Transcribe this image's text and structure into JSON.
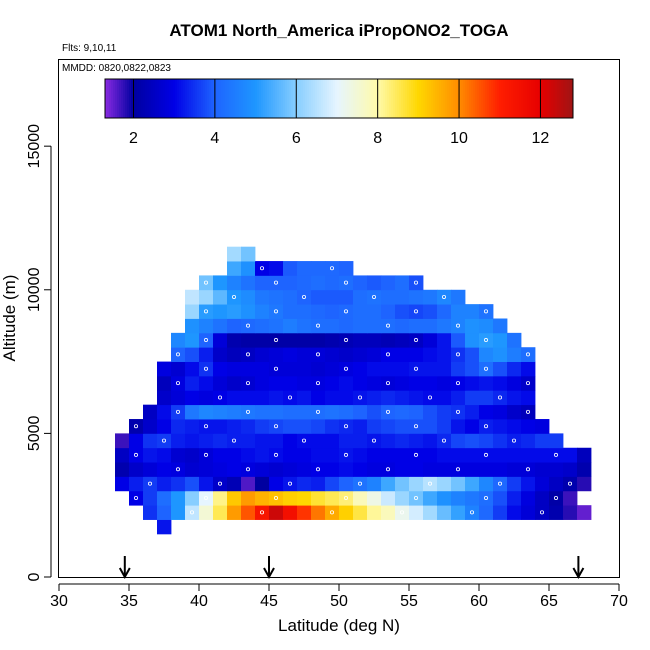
{
  "chart_data": {
    "type": "heatmap",
    "title": "ATOM1 North_America iPropONO2_TOGA",
    "annotations": {
      "flights": "Flts: 9,10,11",
      "dates": "MMDD: 0820,0822,0823"
    },
    "xlabel": "Latitude (deg N)",
    "ylabel": "Altitude (m)",
    "xlim": [
      30,
      70
    ],
    "ylim": [
      0,
      18000
    ],
    "xticks": [
      30,
      35,
      40,
      45,
      50,
      55,
      60,
      65,
      70
    ],
    "yticks": [
      0,
      5000,
      10000,
      15000
    ],
    "colorbar": {
      "vmin": 1.3,
      "vmax": 12.8,
      "ticks": [
        2,
        4,
        6,
        8,
        10,
        12
      ],
      "stops": [
        {
          "v": 1.3,
          "c": "#8a2be2"
        },
        {
          "v": 2.0,
          "c": "#0000a0"
        },
        {
          "v": 3.0,
          "c": "#0000e6"
        },
        {
          "v": 4.0,
          "c": "#1e64ff"
        },
        {
          "v": 5.0,
          "c": "#1e96ff"
        },
        {
          "v": 6.0,
          "c": "#87ceff"
        },
        {
          "v": 7.0,
          "c": "#e6f5ff"
        },
        {
          "v": 8.0,
          "c": "#fffaaa"
        },
        {
          "v": 9.0,
          "c": "#ffd700"
        },
        {
          "v": 10.0,
          "c": "#ff8c00"
        },
        {
          "v": 11.0,
          "c": "#ff1e00"
        },
        {
          "v": 12.0,
          "c": "#e60000"
        },
        {
          "v": 12.8,
          "c": "#a01414"
        }
      ]
    },
    "flight_markers_lat": [
      34.7,
      45.0,
      67.1
    ],
    "cell_size": {
      "lat": 1.0,
      "alt": 500
    },
    "alt_bins": [
      2000,
      2500,
      3000,
      3500,
      4000,
      4500,
      5000,
      5500,
      6000,
      6500,
      7000,
      7500,
      8000,
      8500,
      9000,
      9500,
      10000,
      10500
    ],
    "rows": [
      {
        "alt": 1500,
        "start": 37,
        "values": [
          3.2
        ]
      },
      {
        "alt": 2000,
        "start": 36,
        "values": [
          3.5,
          4.0,
          5.0,
          6.6,
          7.5,
          8.5,
          9.8,
          10.5,
          11.3,
          12.3,
          11.5,
          10.8,
          10.2,
          9.6,
          9.1,
          8.6,
          8.1,
          7.8,
          7.2,
          6.8,
          6.3,
          5.7,
          5.2,
          4.6,
          4.1,
          3.6,
          3.1,
          2.8,
          2.5,
          2.2,
          1.8,
          1.5
        ]
      },
      {
        "alt": 2500,
        "start": 35,
        "values": [
          3.0,
          3.6,
          4.2,
          5.0,
          6.0,
          7.0,
          8.2,
          9.2,
          9.8,
          9.5,
          9.3,
          9.1,
          9.0,
          8.7,
          8.5,
          8.3,
          7.8,
          7.3,
          6.7,
          6.2,
          5.8,
          5.3,
          4.9,
          4.6,
          4.4,
          4.2,
          3.8,
          3.3,
          2.9,
          2.5,
          2.1,
          1.7
        ]
      },
      {
        "alt": 3000,
        "start": 34,
        "values": [
          3.0,
          3.3,
          3.6,
          3.3,
          3.5,
          3.8,
          3.2,
          2.6,
          2.3,
          1.6,
          2.0,
          3.0,
          3.2,
          3.4,
          3.3,
          3.7,
          4.0,
          4.3,
          4.6,
          5.3,
          5.8,
          6.2,
          6.5,
          6.2,
          5.8,
          5.3,
          4.7,
          4.1,
          3.6,
          3.2,
          2.8,
          2.5,
          2.2,
          1.8
        ]
      },
      {
        "alt": 3500,
        "start": 34,
        "values": [
          2.2,
          2.6,
          2.8,
          3.0,
          2.9,
          2.7,
          2.8,
          2.9,
          3.0,
          2.9,
          2.8,
          2.7,
          2.8,
          2.9,
          3.0,
          3.0,
          3.1,
          3.0,
          2.9,
          2.9,
          3.0,
          3.0,
          2.9,
          2.9,
          2.9,
          2.9,
          2.9,
          2.9,
          2.8,
          2.8,
          2.7,
          2.7,
          2.6,
          2.2
        ]
      },
      {
        "alt": 4000,
        "start": 34,
        "values": [
          2.5,
          3.0,
          3.2,
          3.1,
          2.7,
          2.6,
          2.8,
          3.0,
          3.0,
          3.1,
          3.2,
          3.1,
          3.0,
          3.0,
          3.1,
          3.1,
          3.2,
          3.1,
          3.0,
          3.0,
          3.0,
          3.0,
          3.0,
          3.1,
          3.1,
          3.1,
          3.1,
          3.1,
          3.1,
          3.1,
          3.1,
          3.1,
          3.1,
          2.4
        ]
      },
      {
        "alt": 4500,
        "start": 34,
        "values": [
          1.7,
          3.0,
          3.5,
          3.6,
          3.3,
          3.2,
          3.3,
          3.4,
          3.3,
          3.3,
          3.2,
          3.2,
          3.0,
          3.1,
          3.1,
          3.1,
          3.3,
          3.3,
          3.2,
          3.3,
          3.4,
          3.3,
          3.2,
          3.4,
          3.7,
          3.8,
          3.7,
          3.5,
          3.3,
          3.4,
          3.6,
          3.6
        ]
      },
      {
        "alt": 5000,
        "start": 35,
        "values": [
          2.2,
          2.6,
          3.0,
          3.4,
          3.3,
          3.2,
          3.2,
          3.3,
          3.4,
          3.6,
          3.7,
          3.8,
          3.8,
          3.7,
          3.5,
          3.4,
          3.3,
          3.6,
          3.7,
          3.8,
          3.8,
          3.8,
          3.6,
          3.2,
          3.0,
          3.3,
          3.2,
          3.1,
          3.0,
          2.9
        ]
      },
      {
        "alt": 5500,
        "start": 36,
        "values": [
          2.5,
          3.1,
          3.6,
          4.4,
          4.7,
          4.6,
          4.5,
          4.4,
          4.3,
          4.3,
          4.2,
          4.2,
          4.2,
          4.3,
          4.2,
          4.0,
          3.8,
          4.0,
          4.1,
          4.0,
          3.8,
          3.6,
          3.5,
          3.3,
          3.0,
          2.9,
          2.6,
          2.4
        ]
      },
      {
        "alt": 6000,
        "start": 37,
        "values": [
          2.6,
          2.8,
          3.0,
          2.9,
          3.0,
          3.1,
          3.1,
          3.1,
          3.2,
          3.1,
          3.2,
          3.0,
          3.1,
          3.1,
          3.2,
          3.3,
          3.4,
          3.3,
          3.2,
          3.1,
          3.1,
          3.3,
          3.6,
          3.6,
          3.4,
          3.2,
          3.1
        ]
      },
      {
        "alt": 6500,
        "start": 37,
        "values": [
          2.4,
          2.9,
          3.3,
          3.1,
          2.8,
          2.6,
          2.7,
          2.9,
          3.0,
          3.0,
          2.9,
          2.9,
          3.0,
          3.1,
          3.0,
          2.9,
          2.8,
          2.9,
          3.0,
          3.0,
          2.9,
          3.0,
          3.1,
          3.2,
          3.1,
          2.9,
          2.6
        ]
      },
      {
        "alt": 7000,
        "start": 37,
        "values": [
          2.9,
          2.7,
          3.1,
          3.5,
          3.0,
          2.9,
          2.9,
          2.9,
          2.8,
          2.8,
          2.8,
          2.7,
          2.8,
          2.9,
          3.0,
          3.1,
          3.1,
          3.1,
          3.2,
          3.2,
          3.2,
          3.6,
          3.8,
          4.2,
          3.8,
          3.4,
          3.1
        ]
      },
      {
        "alt": 7500,
        "start": 38,
        "values": [
          4.0,
          3.8,
          3.3,
          2.6,
          2.4,
          2.5,
          2.7,
          2.8,
          2.9,
          2.8,
          2.8,
          2.7,
          2.6,
          2.7,
          2.8,
          3.0,
          3.0,
          3.0,
          3.1,
          3.2,
          3.5,
          3.8,
          4.7,
          4.9,
          4.5,
          4.2
        ]
      },
      {
        "alt": 8000,
        "start": 38,
        "values": [
          4.7,
          5.0,
          4.0,
          2.8,
          2.2,
          2.1,
          2.1,
          2.1,
          2.1,
          2.1,
          2.1,
          2.2,
          2.3,
          2.4,
          2.4,
          2.3,
          2.4,
          2.5,
          2.8,
          3.2,
          3.9,
          4.9,
          5.1,
          5.0,
          4.3
        ]
      },
      {
        "alt": 8500,
        "start": 39,
        "values": [
          4.9,
          4.6,
          4.3,
          4.0,
          4.1,
          4.2,
          4.3,
          4.5,
          4.3,
          4.2,
          4.2,
          4.1,
          4.2,
          4.2,
          4.2,
          4.1,
          4.2,
          4.2,
          4.4,
          4.6,
          4.9,
          4.8,
          4.4
        ]
      },
      {
        "alt": 9000,
        "start": 39,
        "values": [
          6.2,
          5.1,
          5.0,
          5.1,
          4.9,
          4.6,
          4.4,
          4.2,
          4.2,
          4.1,
          4.0,
          4.1,
          4.2,
          4.2,
          4.0,
          3.8,
          3.7,
          3.8,
          4.1,
          4.6,
          4.6,
          4.3
        ]
      },
      {
        "alt": 9500,
        "start": 39,
        "values": [
          6.6,
          6.2,
          5.6,
          5.0,
          4.8,
          4.4,
          4.3,
          4.2,
          4.0,
          3.9,
          3.9,
          3.9,
          4.2,
          4.3,
          4.2,
          4.2,
          4.3,
          4.4,
          4.7,
          4.4
        ]
      },
      {
        "alt": 10000,
        "start": 40,
        "values": [
          5.8,
          5.0,
          4.6,
          4.3,
          4.0,
          4.0,
          4.0,
          4.1,
          4.2,
          4.1,
          4.2,
          4.0,
          3.9,
          4.0,
          4.2,
          3.8
        ]
      },
      {
        "alt": 10500,
        "start": 42,
        "values": [
          5.3,
          4.9,
          3.0,
          3.1,
          3.9,
          4.1,
          4.1,
          4.1,
          4.0
        ]
      },
      {
        "alt": 11000,
        "start": 42,
        "values": [
          6.3,
          5.8
        ]
      }
    ]
  }
}
